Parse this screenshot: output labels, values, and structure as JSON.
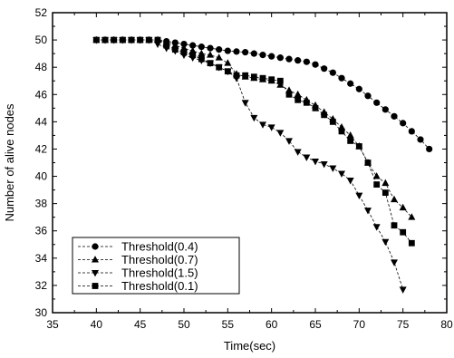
{
  "chart_data": {
    "type": "line",
    "title": "",
    "xlabel": "Time(sec)",
    "ylabel": "Number of alive nodes",
    "xlim": [
      35,
      80
    ],
    "ylim": [
      30,
      52
    ],
    "xticks": [
      35,
      40,
      45,
      50,
      55,
      60,
      65,
      70,
      75,
      80
    ],
    "yticks": [
      30,
      32,
      34,
      36,
      38,
      40,
      42,
      44,
      46,
      48,
      50,
      52
    ],
    "legend_position": "bottom-left",
    "series": [
      {
        "name": "Threshold(0.4)",
        "marker": "circle",
        "x": [
          40,
          41,
          42,
          43,
          44,
          45,
          46,
          47,
          48,
          49,
          50,
          51,
          52,
          53,
          54,
          55,
          56,
          57,
          58,
          59,
          60,
          61,
          62,
          63,
          64,
          65,
          66,
          67,
          68,
          69,
          70,
          71,
          72,
          73,
          74,
          75,
          76,
          77,
          78
        ],
        "y": [
          50,
          50,
          50,
          50,
          50,
          50,
          50,
          50,
          49.9,
          49.8,
          49.7,
          49.6,
          49.5,
          49.4,
          49.3,
          49.2,
          49.15,
          49.1,
          49,
          48.9,
          48.8,
          48.7,
          48.6,
          48.5,
          48.4,
          48.2,
          47.9,
          47.6,
          47.2,
          46.8,
          46.4,
          45.9,
          45.4,
          44.9,
          44.4,
          43.9,
          43.3,
          42.7,
          42
        ]
      },
      {
        "name": "Threshold(0.7)",
        "marker": "triangle-up",
        "x": [
          40,
          41,
          42,
          43,
          44,
          45,
          46,
          47,
          48,
          49,
          50,
          51,
          52,
          53,
          54,
          55,
          56,
          57,
          58,
          59,
          60,
          61,
          62,
          63,
          64,
          65,
          66,
          67,
          68,
          69,
          70,
          71,
          72,
          73,
          74,
          75,
          76
        ],
        "y": [
          50,
          50,
          50,
          50,
          50,
          50,
          50,
          50,
          49.8,
          49.6,
          49.4,
          49.2,
          49,
          48.9,
          48.7,
          48.3,
          47.5,
          47.3,
          47.2,
          47.1,
          47,
          46.7,
          46.3,
          46,
          45.6,
          45.2,
          44.7,
          44.2,
          43.6,
          43,
          42.2,
          41,
          40,
          39.5,
          38.3,
          37.7,
          37
        ]
      },
      {
        "name": "Threshold(1.5)",
        "marker": "triangle-down",
        "x": [
          40,
          41,
          42,
          43,
          44,
          45,
          46,
          47,
          48,
          49,
          50,
          51,
          52,
          53,
          54,
          55,
          56,
          57,
          58,
          59,
          60,
          61,
          62,
          63,
          64,
          65,
          66,
          67,
          68,
          69,
          70,
          71,
          72,
          73,
          74,
          75
        ],
        "y": [
          50,
          50,
          50,
          50,
          50,
          50,
          50,
          49.7,
          49.4,
          49.2,
          48.9,
          48.7,
          48.5,
          48.3,
          48,
          47.7,
          47.2,
          45.4,
          44.3,
          43.8,
          43.6,
          43.2,
          42.6,
          41.8,
          41.4,
          41.1,
          40.9,
          40.6,
          40.2,
          39.7,
          38.6,
          37.5,
          36.3,
          35.2,
          33.7,
          31.7
        ]
      },
      {
        "name": "Threshold(0.1)",
        "marker": "square",
        "x": [
          40,
          41,
          42,
          43,
          44,
          45,
          46,
          47,
          48,
          49,
          50,
          51,
          52,
          53,
          54,
          55,
          56,
          57,
          58,
          59,
          60,
          61,
          62,
          63,
          64,
          65,
          66,
          67,
          68,
          69,
          70,
          71,
          72,
          73,
          74,
          75,
          76
        ],
        "y": [
          50,
          50,
          50,
          50,
          50,
          50,
          50,
          50,
          49.6,
          49.3,
          49.1,
          48.9,
          48.6,
          48.3,
          48,
          47.7,
          47.4,
          47.4,
          47.3,
          47.2,
          47.1,
          47,
          46,
          45.6,
          45.4,
          45,
          44.5,
          44,
          43.3,
          42.6,
          42.2,
          41,
          39.4,
          38.8,
          36.4,
          35.9,
          35.1
        ]
      }
    ]
  }
}
